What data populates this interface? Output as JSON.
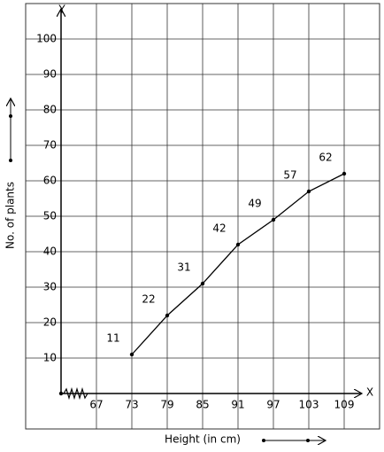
{
  "chart_data": {
    "type": "line",
    "x_axis_name": "X",
    "y_axis_name": "Y",
    "xlabel": "Height (in cm)",
    "ylabel": "No. of plants",
    "x": [
      73,
      79,
      85,
      91,
      97,
      103,
      109
    ],
    "series": [
      {
        "color": "#000000",
        "values": [
          11,
          22,
          31,
          42,
          49,
          57,
          62
        ]
      }
    ],
    "xlim": [
      55,
      115
    ],
    "xticks": [
      67,
      73,
      79,
      85,
      91,
      97,
      103,
      109
    ],
    "ylim": [
      -10,
      110
    ],
    "yticks": [
      10,
      20,
      30,
      40,
      50,
      60,
      70,
      80,
      90,
      100
    ],
    "grid": true
  }
}
